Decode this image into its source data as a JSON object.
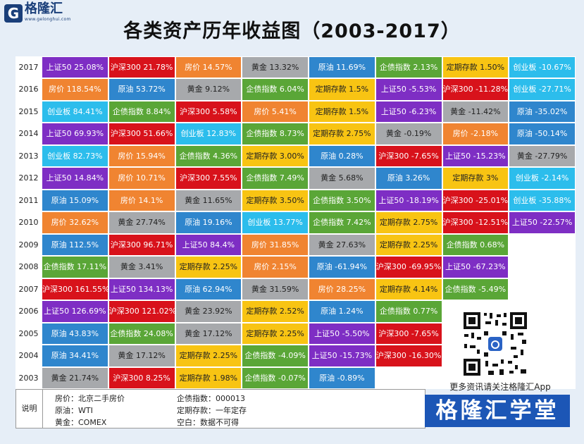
{
  "header": {
    "logo_mark": "G",
    "logo_name": "格隆汇",
    "logo_site": "www.gelonghui.com",
    "title": "各类资产历年收益图（2003-2017）"
  },
  "colors": {
    "上证50": "#7e2ec4",
    "沪深300": "#d8121b",
    "房价": "#f08431",
    "黄金": "#a7a9ac",
    "原油": "#2f86cd",
    "企债指数": "#5aa637",
    "定期存款": "#f8c413",
    "创业板": "#2cbdec",
    "blank": "#ffffff"
  },
  "chart_data": {
    "type": "table",
    "title": "各类资产历年收益图（2003-2017）",
    "years": [
      "2017",
      "2016",
      "2015",
      "2014",
      "2013",
      "2012",
      "2011",
      "2010",
      "2009",
      "2008",
      "2007",
      "2006",
      "2005",
      "2004",
      "2003"
    ],
    "rows": [
      [
        {
          "a": "上证50",
          "v": "25.08%"
        },
        {
          "a": "沪深300",
          "v": "21.78%"
        },
        {
          "a": "房价",
          "v": "14.57%"
        },
        {
          "a": "黄金",
          "v": "13.32%"
        },
        {
          "a": "原油",
          "v": "11.69%"
        },
        {
          "a": "企债指数",
          "v": "2.13%"
        },
        {
          "a": "定期存款",
          "v": "1.50%"
        },
        {
          "a": "创业板",
          "v": "-10.67%"
        }
      ],
      [
        {
          "a": "房价",
          "v": "118.54%"
        },
        {
          "a": "原油",
          "v": "53.72%"
        },
        {
          "a": "黄金",
          "v": "9.12%"
        },
        {
          "a": "企债指数",
          "v": "6.04%"
        },
        {
          "a": "定期存款",
          "v": "1.5%"
        },
        {
          "a": "上证50",
          "v": "-5.53%"
        },
        {
          "a": "沪深300",
          "v": "-11.28%"
        },
        {
          "a": "创业板",
          "v": "-27.71%"
        }
      ],
      [
        {
          "a": "创业板",
          "v": "84.41%"
        },
        {
          "a": "企债指数",
          "v": "8.84%"
        },
        {
          "a": "沪深300",
          "v": "5.58%"
        },
        {
          "a": "房价",
          "v": "5.41%"
        },
        {
          "a": "定期存款",
          "v": "1.5%"
        },
        {
          "a": "上证50",
          "v": "-6.23%"
        },
        {
          "a": "黄金",
          "v": "-11.42%"
        },
        {
          "a": "原油",
          "v": "-35.02%"
        }
      ],
      [
        {
          "a": "上证50",
          "v": "69.93%"
        },
        {
          "a": "沪深300",
          "v": "51.66%"
        },
        {
          "a": "创业板",
          "v": "12.83%"
        },
        {
          "a": "企债指数",
          "v": "8.73%"
        },
        {
          "a": "定期存款",
          "v": "2.75%"
        },
        {
          "a": "黄金",
          "v": "-0.19%"
        },
        {
          "a": "房价",
          "v": "-2.18%"
        },
        {
          "a": "原油",
          "v": "-50.14%"
        }
      ],
      [
        {
          "a": "创业板",
          "v": "82.73%"
        },
        {
          "a": "房价",
          "v": "15.94%"
        },
        {
          "a": "企债指数",
          "v": "4.36%"
        },
        {
          "a": "定期存款",
          "v": "3.00%"
        },
        {
          "a": "原油",
          "v": "0.28%"
        },
        {
          "a": "沪深300",
          "v": "-7.65%"
        },
        {
          "a": "上证50",
          "v": "-15.23%"
        },
        {
          "a": "黄金",
          "v": "-27.79%"
        }
      ],
      [
        {
          "a": "上证50",
          "v": "14.84%"
        },
        {
          "a": "房价",
          "v": "10.71%"
        },
        {
          "a": "沪深300",
          "v": "7.55%"
        },
        {
          "a": "企债指数",
          "v": "7.49%"
        },
        {
          "a": "黄金",
          "v": "5.68%"
        },
        {
          "a": "原油",
          "v": "3.26%"
        },
        {
          "a": "定期存款",
          "v": "3%"
        },
        {
          "a": "创业板",
          "v": "-2.14%"
        }
      ],
      [
        {
          "a": "原油",
          "v": "15.09%"
        },
        {
          "a": "房价",
          "v": "14.1%"
        },
        {
          "a": "黄金",
          "v": "11.65%"
        },
        {
          "a": "定期存款",
          "v": "3.50%"
        },
        {
          "a": "企债指数",
          "v": "3.50%"
        },
        {
          "a": "上证50",
          "v": "-18.19%"
        },
        {
          "a": "沪深300",
          "v": "-25.01%"
        },
        {
          "a": "创业板",
          "v": "-35.88%"
        }
      ],
      [
        {
          "a": "房价",
          "v": "32.62%"
        },
        {
          "a": "黄金",
          "v": "27.74%"
        },
        {
          "a": "原油",
          "v": "19.16%"
        },
        {
          "a": "创业板",
          "v": "13.77%"
        },
        {
          "a": "企债指数",
          "v": "7.42%"
        },
        {
          "a": "定期存款",
          "v": "2.75%"
        },
        {
          "a": "沪深300",
          "v": "-12.51%"
        },
        {
          "a": "上证50",
          "v": "-22.57%"
        }
      ],
      [
        {
          "a": "原油",
          "v": "112.5%"
        },
        {
          "a": "沪深300",
          "v": "96.71%"
        },
        {
          "a": "上证50",
          "v": "84.4%"
        },
        {
          "a": "房价",
          "v": "31.85%"
        },
        {
          "a": "黄金",
          "v": "27.63%"
        },
        {
          "a": "定期存款",
          "v": "2.25%"
        },
        {
          "a": "企债指数",
          "v": "0.68%"
        },
        {
          "a": "blank",
          "v": ""
        }
      ],
      [
        {
          "a": "企债指数",
          "v": "17.11%"
        },
        {
          "a": "黄金",
          "v": "3.41%"
        },
        {
          "a": "定期存款",
          "v": "2.25%"
        },
        {
          "a": "房价",
          "v": "2.15%"
        },
        {
          "a": "原油",
          "v": "-61.94%"
        },
        {
          "a": "沪深300",
          "v": "-69.95%"
        },
        {
          "a": "上证50",
          "v": "-67.23%"
        },
        {
          "a": "blank",
          "v": ""
        }
      ],
      [
        {
          "a": "沪深300",
          "v": "161.55%"
        },
        {
          "a": "上证50",
          "v": "134.13%"
        },
        {
          "a": "原油",
          "v": "62.94%"
        },
        {
          "a": "黄金",
          "v": "31.59%"
        },
        {
          "a": "房价",
          "v": "28.25%"
        },
        {
          "a": "定期存款",
          "v": "4.14%"
        },
        {
          "a": "企债指数",
          "v": "-5.49%"
        },
        {
          "a": "blank",
          "v": ""
        }
      ],
      [
        {
          "a": "上证50",
          "v": "126.69%"
        },
        {
          "a": "沪深300",
          "v": "121.02%"
        },
        {
          "a": "黄金",
          "v": "23.92%"
        },
        {
          "a": "定期存款",
          "v": "2.52%"
        },
        {
          "a": "原油",
          "v": "1.24%"
        },
        {
          "a": "企债指数",
          "v": "0.77%"
        },
        {
          "a": "blank",
          "v": ""
        },
        {
          "a": "blank",
          "v": ""
        }
      ],
      [
        {
          "a": "原油",
          "v": "43.83%"
        },
        {
          "a": "企债指数",
          "v": "24.08%"
        },
        {
          "a": "黄金",
          "v": "17.12%"
        },
        {
          "a": "定期存款",
          "v": "2.25%"
        },
        {
          "a": "上证50",
          "v": "-5.50%"
        },
        {
          "a": "沪深300",
          "v": "-7.65%"
        },
        {
          "a": "blank",
          "v": ""
        },
        {
          "a": "blank",
          "v": ""
        }
      ],
      [
        {
          "a": "原油",
          "v": "34.41%"
        },
        {
          "a": "黄金",
          "v": "17.12%"
        },
        {
          "a": "定期存款",
          "v": "2.25%"
        },
        {
          "a": "企债指数",
          "v": "-4.09%"
        },
        {
          "a": "上证50",
          "v": "-15.73%"
        },
        {
          "a": "沪深300",
          "v": "-16.30%"
        },
        {
          "a": "blank",
          "v": ""
        },
        {
          "a": "blank",
          "v": ""
        }
      ],
      [
        {
          "a": "黄金",
          "v": "21.74%"
        },
        {
          "a": "沪深300",
          "v": "8.25%"
        },
        {
          "a": "定期存款",
          "v": "1.98%"
        },
        {
          "a": "企债指数",
          "v": "-0.07%"
        },
        {
          "a": "原油",
          "v": "-0.89%"
        },
        {
          "a": "blank",
          "v": ""
        },
        {
          "a": "blank",
          "v": ""
        },
        {
          "a": "blank",
          "v": ""
        }
      ]
    ]
  },
  "legend": {
    "heading": "说明",
    "items": [
      {
        "key": "房价",
        "desc": "北京二手房价"
      },
      {
        "key": "企债指数",
        "desc": "000013"
      },
      {
        "key": "原油",
        "desc": "WTI"
      },
      {
        "key": "定期存款",
        "desc": "一年定存"
      },
      {
        "key": "黄金",
        "desc": "COMEX"
      },
      {
        "key": "空白",
        "desc": "数据不可得"
      }
    ]
  },
  "promo": {
    "text": "更多资讯请关注格隆汇App",
    "brand": "格隆汇学堂",
    "qr_icon": "qr-code-icon"
  }
}
